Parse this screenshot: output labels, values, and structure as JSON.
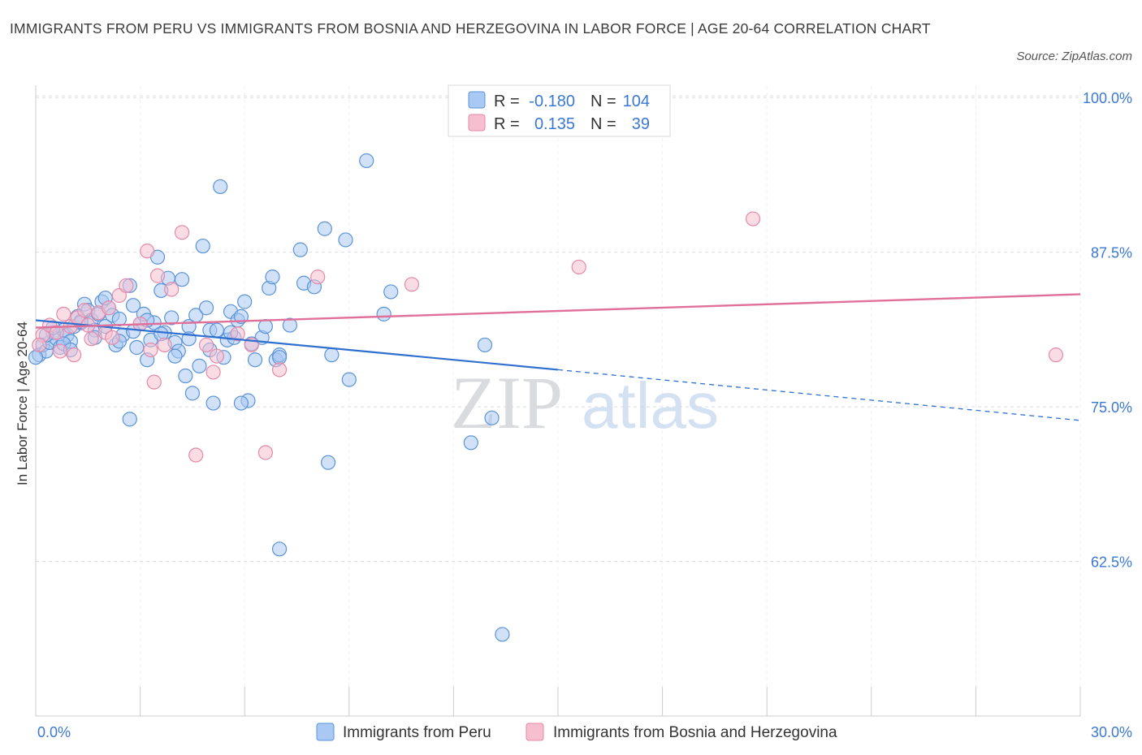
{
  "title": "IMMIGRANTS FROM PERU VS IMMIGRANTS FROM BOSNIA AND HERZEGOVINA IN LABOR FORCE | AGE 20-64 CORRELATION CHART",
  "source": "Source: ZipAtlas.com",
  "watermark": {
    "zip": "ZIP",
    "atlas": "atlas"
  },
  "colors": {
    "peru_fill": "#a9c8f3",
    "peru_stroke": "#5b93d9",
    "peru_line": "#2f6fcf",
    "bosnia_fill": "#f6bfd0",
    "bosnia_stroke": "#e58aa8",
    "bosnia_line": "#e0709a",
    "axis_text": "#3b78d4",
    "grid": "#d9dde3"
  },
  "legend_box": {
    "rows": [
      {
        "r_label": "R =",
        "r_value": "-0.180",
        "n_label": "N =",
        "n_value": "104"
      },
      {
        "r_label": "R =",
        "r_value": "0.135",
        "n_label": "N =",
        "n_value": "39"
      }
    ]
  },
  "chart_data": {
    "type": "scatter",
    "xlabel": "",
    "ylabel": "In Labor Force | Age 20-64",
    "xlim": [
      0,
      30
    ],
    "ylim": [
      50,
      101
    ],
    "x_tick_labels": [
      "0.0%",
      "30.0%"
    ],
    "y_ticks": [
      62.5,
      75.0,
      87.5,
      100.0
    ],
    "y_tick_labels": [
      "62.5%",
      "75.0%",
      "87.5%",
      "100.0%"
    ],
    "grid": true,
    "legend_position": "bottom",
    "series": [
      {
        "name": "Immigrants from Peru",
        "r": -0.18,
        "n": 104,
        "trend": {
          "x_start": 0,
          "y_start": 82.0,
          "x_solid_end": 15.0,
          "y_solid_end": 78.0,
          "x_end": 30,
          "y_end": 73.9
        },
        "points": [
          [
            0.1,
            79.2
          ],
          [
            0.2,
            80.0
          ],
          [
            0.3,
            79.5
          ],
          [
            0.4,
            80.2
          ],
          [
            0.5,
            81.0
          ],
          [
            0.6,
            80.5
          ],
          [
            0.7,
            79.8
          ],
          [
            0.8,
            81.2
          ],
          [
            0.9,
            80.8
          ],
          [
            1.0,
            80.3
          ],
          [
            1.1,
            81.5
          ],
          [
            1.2,
            82.3
          ],
          [
            1.3,
            81.8
          ],
          [
            1.4,
            83.3
          ],
          [
            1.5,
            82.8
          ],
          [
            1.6,
            82.0
          ],
          [
            1.7,
            81.2
          ],
          [
            1.8,
            82.5
          ],
          [
            1.9,
            83.5
          ],
          [
            2.0,
            81.5
          ],
          [
            2.1,
            83.0
          ],
          [
            2.2,
            82.4
          ],
          [
            2.3,
            80.0
          ],
          [
            2.4,
            82.1
          ],
          [
            2.5,
            80.8
          ],
          [
            2.7,
            84.8
          ],
          [
            2.8,
            83.2
          ],
          [
            2.9,
            79.8
          ],
          [
            3.0,
            81.7
          ],
          [
            3.1,
            82.5
          ],
          [
            3.2,
            78.8
          ],
          [
            3.3,
            80.4
          ],
          [
            3.4,
            81.8
          ],
          [
            3.5,
            87.1
          ],
          [
            3.6,
            84.4
          ],
          [
            3.7,
            81.0
          ],
          [
            3.8,
            85.4
          ],
          [
            3.9,
            82.2
          ],
          [
            4.0,
            80.2
          ],
          [
            4.1,
            79.5
          ],
          [
            4.2,
            85.3
          ],
          [
            4.3,
            77.5
          ],
          [
            4.4,
            81.5
          ],
          [
            4.5,
            76.1
          ],
          [
            4.6,
            82.4
          ],
          [
            4.7,
            78.3
          ],
          [
            4.8,
            88.0
          ],
          [
            4.9,
            83.0
          ],
          [
            5.0,
            81.2
          ],
          [
            5.1,
            75.3
          ],
          [
            5.2,
            81.2
          ],
          [
            5.3,
            92.8
          ],
          [
            5.4,
            79.0
          ],
          [
            5.5,
            80.4
          ],
          [
            5.6,
            82.7
          ],
          [
            5.7,
            80.6
          ],
          [
            5.8,
            82.0
          ],
          [
            5.9,
            82.3
          ],
          [
            6.0,
            83.5
          ],
          [
            6.1,
            75.5
          ],
          [
            6.3,
            78.8
          ],
          [
            6.5,
            80.6
          ],
          [
            6.6,
            81.5
          ],
          [
            6.7,
            84.6
          ],
          [
            6.8,
            85.5
          ],
          [
            6.9,
            78.8
          ],
          [
            7.0,
            79.2
          ],
          [
            7.3,
            81.6
          ],
          [
            7.6,
            87.7
          ],
          [
            7.7,
            85.0
          ],
          [
            8.0,
            84.7
          ],
          [
            8.3,
            89.4
          ],
          [
            8.4,
            70.5
          ],
          [
            8.5,
            79.2
          ],
          [
            8.9,
            88.5
          ],
          [
            9.0,
            77.2
          ],
          [
            9.5,
            94.9
          ],
          [
            10.0,
            82.5
          ],
          [
            10.2,
            84.3
          ],
          [
            12.5,
            72.1
          ],
          [
            12.9,
            80.0
          ],
          [
            13.1,
            74.1
          ],
          [
            13.4,
            56.6
          ],
          [
            7.0,
            63.5
          ],
          [
            0.3,
            80.8
          ],
          [
            0.5,
            81.4
          ],
          [
            0.8,
            80.1
          ],
          [
            1.0,
            79.6
          ],
          [
            1.3,
            81.9
          ],
          [
            1.7,
            80.6
          ],
          [
            2.0,
            83.8
          ],
          [
            2.4,
            80.3
          ],
          [
            2.8,
            81.1
          ],
          [
            3.2,
            82.0
          ],
          [
            3.6,
            80.9
          ],
          [
            4.0,
            79.1
          ],
          [
            4.4,
            80.5
          ],
          [
            5.0,
            79.6
          ],
          [
            5.6,
            81.0
          ],
          [
            6.2,
            80.1
          ],
          [
            2.7,
            74.0
          ],
          [
            5.9,
            75.3
          ],
          [
            7.0,
            79.0
          ],
          [
            0.0,
            79.0
          ]
        ]
      },
      {
        "name": "Immigrants from Bosnia and Herzegovina",
        "r": 0.135,
        "n": 39,
        "trend": {
          "x_start": 0,
          "y_start": 81.4,
          "x_end": 30,
          "y_end": 84.1
        },
        "points": [
          [
            0.2,
            80.8
          ],
          [
            0.4,
            81.6
          ],
          [
            0.6,
            81.0
          ],
          [
            0.7,
            79.5
          ],
          [
            0.8,
            82.5
          ],
          [
            1.0,
            81.5
          ],
          [
            1.1,
            79.2
          ],
          [
            1.2,
            82.2
          ],
          [
            1.4,
            82.8
          ],
          [
            1.5,
            81.6
          ],
          [
            1.6,
            80.5
          ],
          [
            1.8,
            82.6
          ],
          [
            2.0,
            81.0
          ],
          [
            2.1,
            83.0
          ],
          [
            2.2,
            80.6
          ],
          [
            2.4,
            84.0
          ],
          [
            2.6,
            84.8
          ],
          [
            3.0,
            81.7
          ],
          [
            3.2,
            87.6
          ],
          [
            3.3,
            79.6
          ],
          [
            3.4,
            77.0
          ],
          [
            3.5,
            85.6
          ],
          [
            3.7,
            80.0
          ],
          [
            3.9,
            84.5
          ],
          [
            4.2,
            89.1
          ],
          [
            4.6,
            71.1
          ],
          [
            4.9,
            80.0
          ],
          [
            5.1,
            77.8
          ],
          [
            5.2,
            79.1
          ],
          [
            5.8,
            80.9
          ],
          [
            6.2,
            80.0
          ],
          [
            6.6,
            71.3
          ],
          [
            7.0,
            78.0
          ],
          [
            8.1,
            85.5
          ],
          [
            10.8,
            84.9
          ],
          [
            15.6,
            86.3
          ],
          [
            20.6,
            90.2
          ],
          [
            29.3,
            79.2
          ],
          [
            0.1,
            80.0
          ]
        ]
      }
    ]
  }
}
